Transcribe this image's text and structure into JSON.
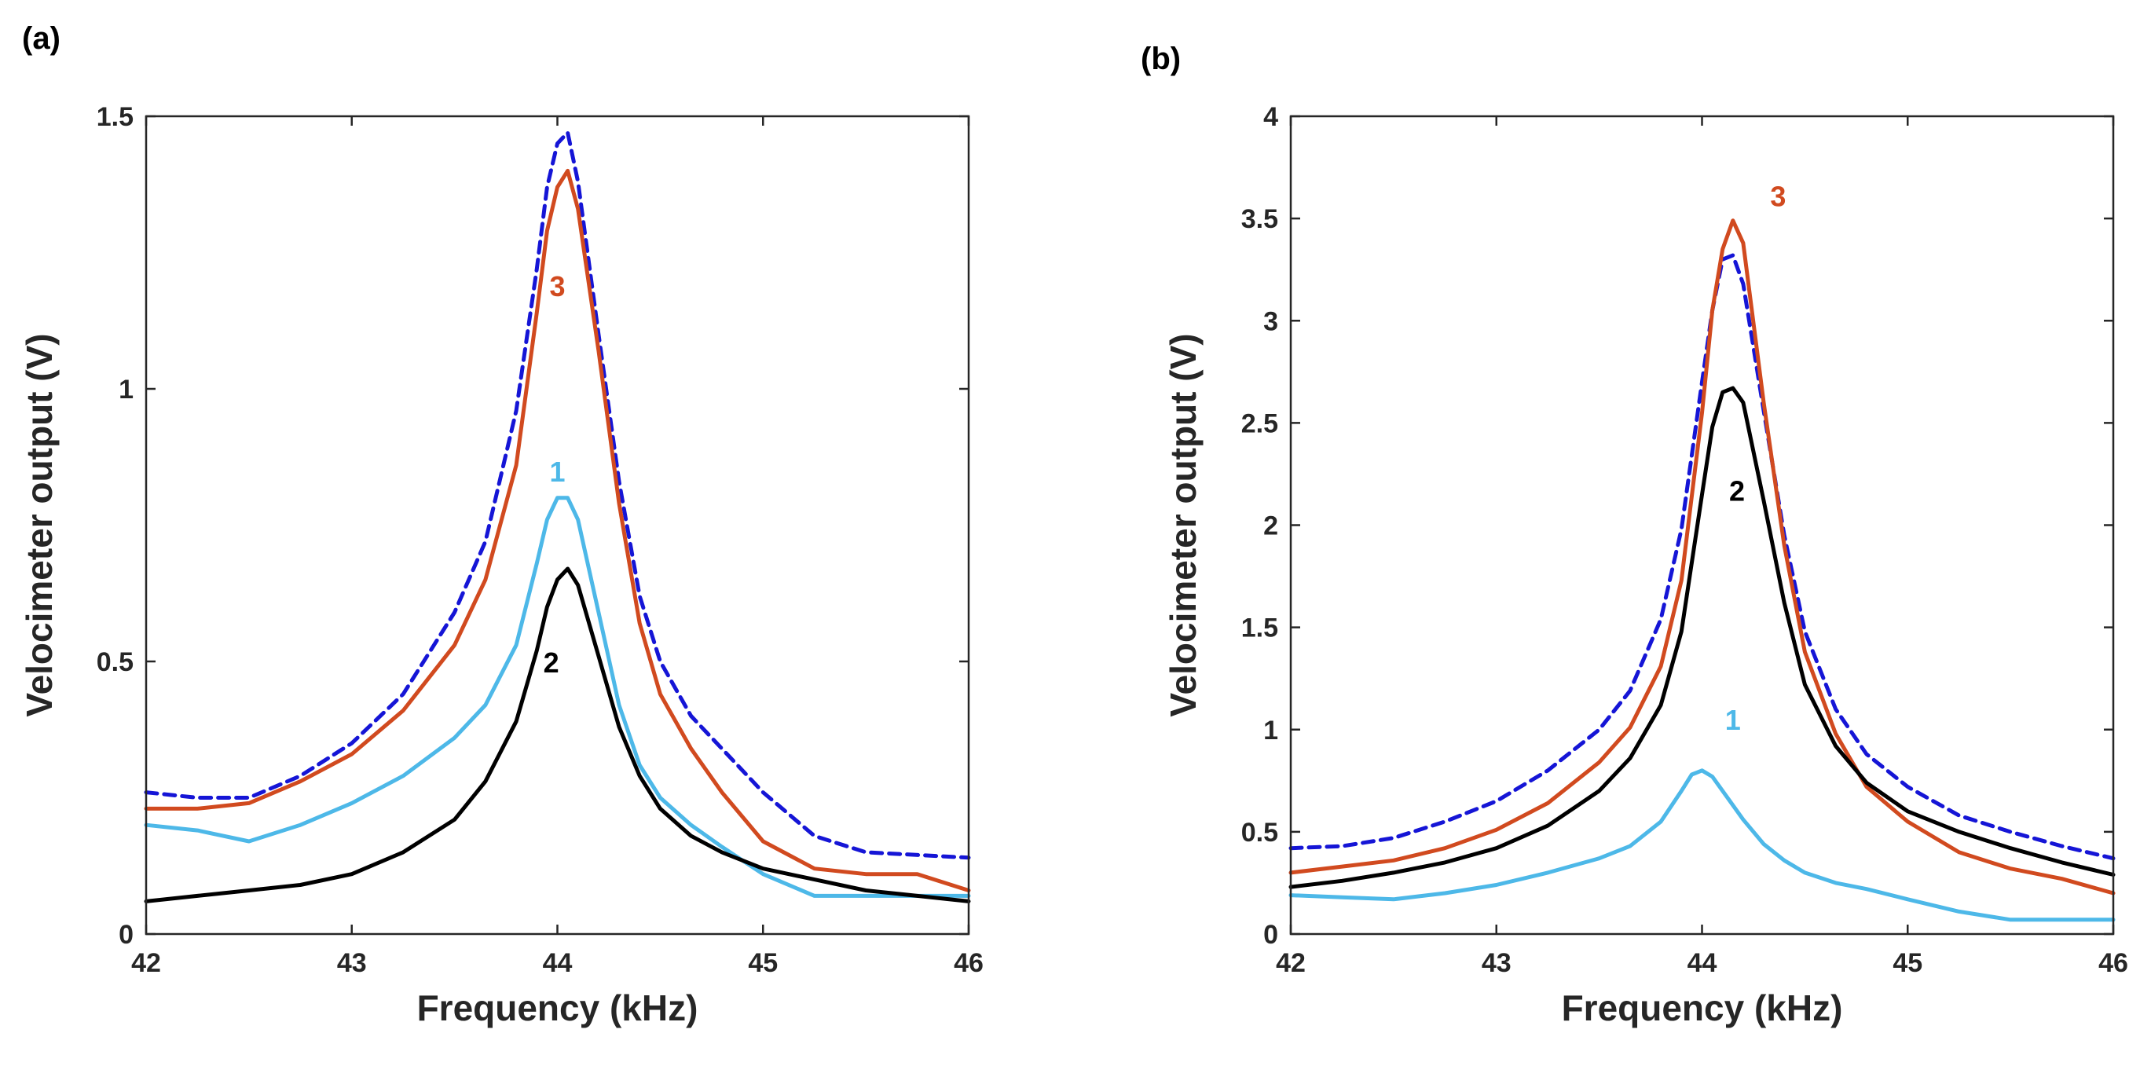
{
  "chart_data": [
    {
      "panel_label": "(a)",
      "type": "line",
      "xlabel": "Frequency (kHz)",
      "ylabel": "Velocimeter output (V)",
      "xlim": [
        42,
        46
      ],
      "ylim": [
        0,
        1.5
      ],
      "xticks": [
        42,
        43,
        44,
        45,
        46
      ],
      "yticks": [
        0,
        0.5,
        1,
        1.5
      ],
      "xtick_labels": [
        "42",
        "43",
        "44",
        "45",
        "46"
      ],
      "ytick_labels": [
        "0",
        "0.5",
        "1",
        "1.5"
      ],
      "grid": false,
      "series": [
        {
          "color": "#1515d6",
          "dash": true,
          "x": [
            42.0,
            42.25,
            42.5,
            42.75,
            43.0,
            43.25,
            43.5,
            43.65,
            43.8,
            43.9,
            43.95,
            44.0,
            44.05,
            44.1,
            44.2,
            44.3,
            44.4,
            44.5,
            44.65,
            44.8,
            45.0,
            45.25,
            45.5,
            46.0
          ],
          "y": [
            0.26,
            0.25,
            0.25,
            0.29,
            0.35,
            0.44,
            0.59,
            0.72,
            0.96,
            1.22,
            1.37,
            1.45,
            1.47,
            1.38,
            1.1,
            0.83,
            0.62,
            0.5,
            0.4,
            0.34,
            0.26,
            0.18,
            0.15,
            0.14
          ]
        },
        {
          "color": "#d14a1f",
          "dash": false,
          "x": [
            42.0,
            42.25,
            42.5,
            42.75,
            43.0,
            43.25,
            43.5,
            43.65,
            43.8,
            43.9,
            43.95,
            44.0,
            44.05,
            44.1,
            44.2,
            44.3,
            44.4,
            44.5,
            44.65,
            44.8,
            45.0,
            45.25,
            45.5,
            45.75,
            46.0
          ],
          "y": [
            0.23,
            0.23,
            0.24,
            0.28,
            0.33,
            0.41,
            0.53,
            0.65,
            0.86,
            1.14,
            1.29,
            1.37,
            1.4,
            1.33,
            1.07,
            0.79,
            0.57,
            0.44,
            0.34,
            0.26,
            0.17,
            0.12,
            0.11,
            0.11,
            0.08
          ]
        },
        {
          "color": "#4db8e8",
          "dash": false,
          "x": [
            42.0,
            42.25,
            42.5,
            42.75,
            43.0,
            43.25,
            43.5,
            43.65,
            43.8,
            43.9,
            43.95,
            44.0,
            44.05,
            44.1,
            44.2,
            44.3,
            44.4,
            44.5,
            44.65,
            44.8,
            45.0,
            45.25,
            45.5,
            45.75,
            46.0
          ],
          "y": [
            0.2,
            0.19,
            0.17,
            0.2,
            0.24,
            0.29,
            0.36,
            0.42,
            0.53,
            0.68,
            0.76,
            0.8,
            0.8,
            0.76,
            0.59,
            0.42,
            0.31,
            0.25,
            0.2,
            0.16,
            0.11,
            0.07,
            0.07,
            0.07,
            0.07
          ]
        },
        {
          "color": "#000000",
          "dash": false,
          "x": [
            42.0,
            42.25,
            42.5,
            42.75,
            43.0,
            43.25,
            43.5,
            43.65,
            43.8,
            43.9,
            43.95,
            44.0,
            44.05,
            44.1,
            44.2,
            44.3,
            44.4,
            44.5,
            44.65,
            44.8,
            45.0,
            45.25,
            45.5,
            45.75,
            46.0
          ],
          "y": [
            0.06,
            0.07,
            0.08,
            0.09,
            0.11,
            0.15,
            0.21,
            0.28,
            0.39,
            0.52,
            0.6,
            0.65,
            0.67,
            0.64,
            0.51,
            0.38,
            0.29,
            0.23,
            0.18,
            0.15,
            0.12,
            0.1,
            0.08,
            0.07,
            0.06
          ]
        }
      ],
      "annotations": [
        {
          "text": "3",
          "x": 44.0,
          "y": 1.17,
          "color": "#d14a1f"
        },
        {
          "text": "1",
          "x": 44.0,
          "y": 0.83,
          "color": "#4db8e8"
        },
        {
          "text": "2",
          "x": 43.97,
          "y": 0.48,
          "color": "#000000"
        }
      ]
    },
    {
      "panel_label": "(b)",
      "type": "line",
      "xlabel": "Frequency (kHz)",
      "ylabel": "Velocimeter output (V)",
      "xlim": [
        42,
        46
      ],
      "ylim": [
        0,
        4
      ],
      "xticks": [
        42,
        43,
        44,
        45,
        46
      ],
      "yticks": [
        0,
        0.5,
        1,
        1.5,
        2,
        2.5,
        3,
        3.5,
        4
      ],
      "xtick_labels": [
        "42",
        "43",
        "44",
        "45",
        "46"
      ],
      "ytick_labels": [
        "0",
        "0.5",
        "1",
        "1.5",
        "2",
        "2.5",
        "3",
        "3.5",
        "4"
      ],
      "grid": false,
      "series": [
        {
          "color": "#1515d6",
          "dash": true,
          "x": [
            42.0,
            42.25,
            42.5,
            42.75,
            43.0,
            43.25,
            43.5,
            43.65,
            43.8,
            43.9,
            44.0,
            44.05,
            44.1,
            44.15,
            44.2,
            44.3,
            44.4,
            44.5,
            44.65,
            44.8,
            45.0,
            45.25,
            45.5,
            45.75,
            46.0
          ],
          "y": [
            0.42,
            0.43,
            0.47,
            0.55,
            0.65,
            0.8,
            1.0,
            1.19,
            1.54,
            1.98,
            2.7,
            3.05,
            3.3,
            3.32,
            3.18,
            2.56,
            1.95,
            1.48,
            1.1,
            0.88,
            0.72,
            0.58,
            0.5,
            0.43,
            0.37
          ]
        },
        {
          "color": "#d14a1f",
          "dash": false,
          "x": [
            42.0,
            42.25,
            42.5,
            42.75,
            43.0,
            43.25,
            43.5,
            43.65,
            43.8,
            43.9,
            44.0,
            44.05,
            44.1,
            44.15,
            44.2,
            44.3,
            44.4,
            44.5,
            44.65,
            44.8,
            45.0,
            45.25,
            45.5,
            45.75,
            46.0
          ],
          "y": [
            0.3,
            0.33,
            0.36,
            0.42,
            0.51,
            0.64,
            0.84,
            1.01,
            1.31,
            1.73,
            2.55,
            3.05,
            3.35,
            3.49,
            3.38,
            2.6,
            1.9,
            1.38,
            0.98,
            0.72,
            0.55,
            0.4,
            0.32,
            0.27,
            0.2
          ]
        },
        {
          "color": "#000000",
          "dash": false,
          "x": [
            42.0,
            42.25,
            42.5,
            42.75,
            43.0,
            43.25,
            43.5,
            43.65,
            43.8,
            43.9,
            44.0,
            44.05,
            44.1,
            44.15,
            44.2,
            44.3,
            44.4,
            44.5,
            44.65,
            44.8,
            45.0,
            45.25,
            45.5,
            45.75,
            46.0
          ],
          "y": [
            0.23,
            0.26,
            0.3,
            0.35,
            0.42,
            0.53,
            0.7,
            0.86,
            1.12,
            1.48,
            2.15,
            2.48,
            2.65,
            2.67,
            2.6,
            2.12,
            1.62,
            1.22,
            0.92,
            0.74,
            0.6,
            0.5,
            0.42,
            0.35,
            0.29
          ]
        },
        {
          "color": "#4db8e8",
          "dash": false,
          "x": [
            42.0,
            42.25,
            42.5,
            42.75,
            43.0,
            43.25,
            43.5,
            43.65,
            43.8,
            43.9,
            43.95,
            44.0,
            44.05,
            44.1,
            44.2,
            44.3,
            44.4,
            44.5,
            44.65,
            44.8,
            45.0,
            45.25,
            45.5,
            45.75,
            46.0
          ],
          "y": [
            0.19,
            0.18,
            0.17,
            0.2,
            0.24,
            0.3,
            0.37,
            0.43,
            0.55,
            0.7,
            0.78,
            0.8,
            0.77,
            0.7,
            0.56,
            0.44,
            0.36,
            0.3,
            0.25,
            0.22,
            0.17,
            0.11,
            0.07,
            0.07,
            0.07
          ]
        }
      ],
      "annotations": [
        {
          "text": "3",
          "x": 44.37,
          "y": 3.56,
          "color": "#d14a1f"
        },
        {
          "text": "2",
          "x": 44.17,
          "y": 2.12,
          "color": "#000000"
        },
        {
          "text": "1",
          "x": 44.15,
          "y": 1.0,
          "color": "#4db8e8"
        }
      ]
    }
  ]
}
